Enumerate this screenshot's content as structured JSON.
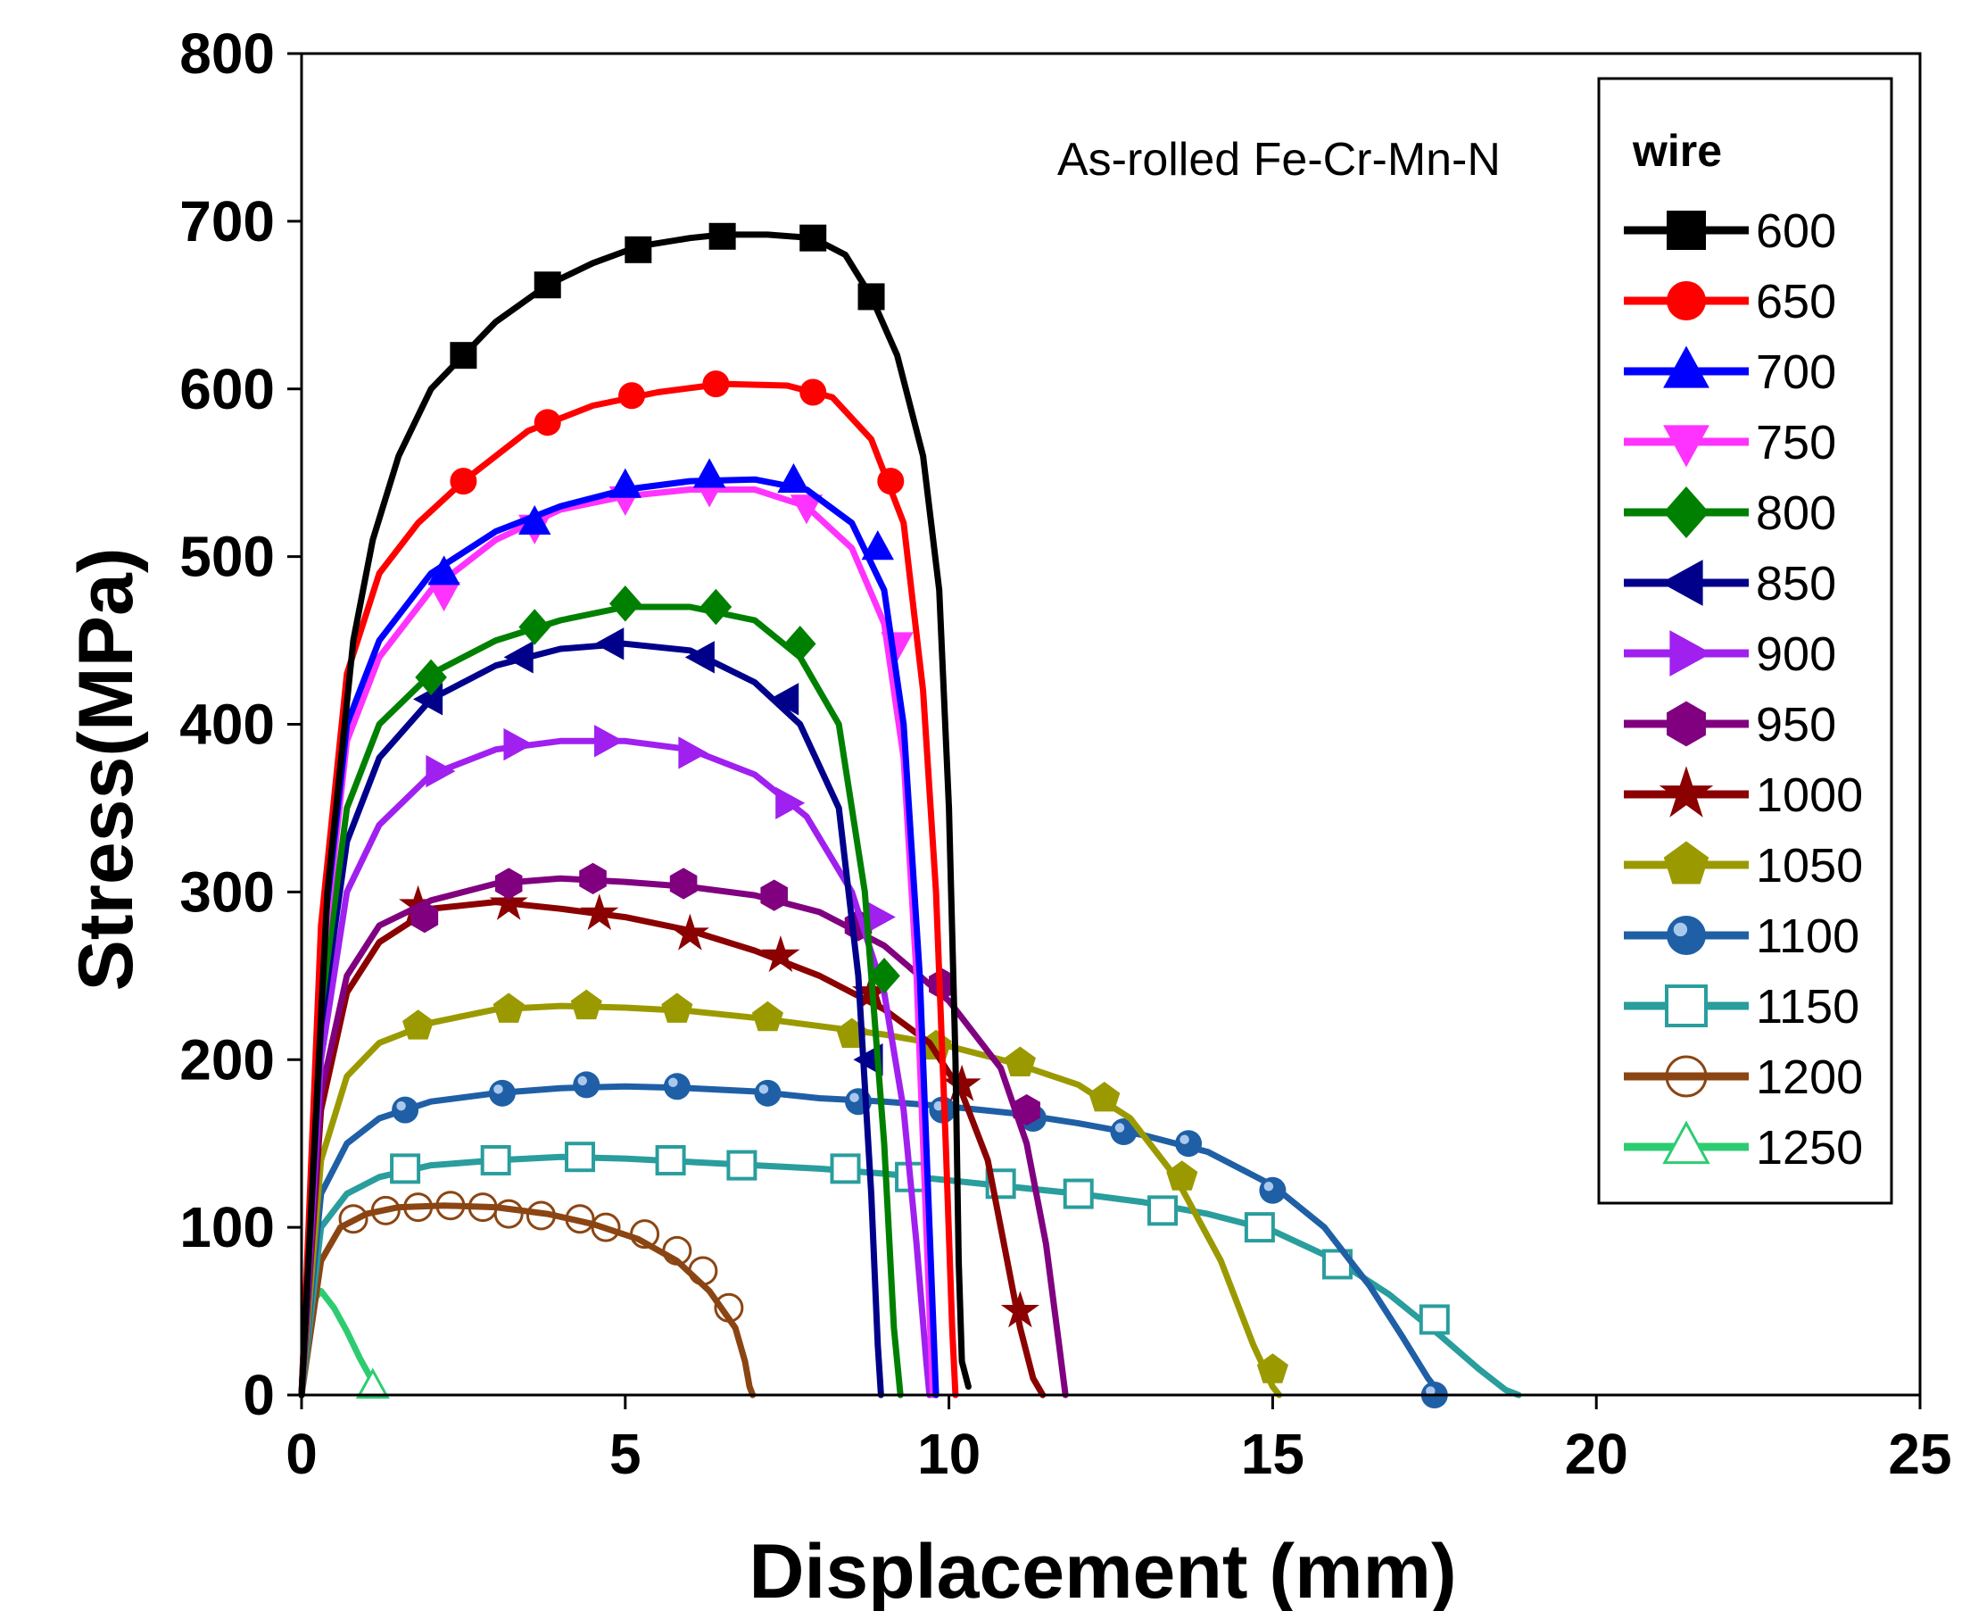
{
  "chart_data": {
    "type": "line",
    "title": "",
    "annotation": "As-rolled Fe-Cr-Mn-N",
    "xlabel": "Displacement (mm)",
    "ylabel": "Stress(MPa)",
    "xlim": [
      0,
      25
    ],
    "ylim": [
      0,
      800
    ],
    "xticks": [
      0,
      5,
      10,
      15,
      20,
      25
    ],
    "yticks": [
      0,
      100,
      200,
      300,
      400,
      500,
      600,
      700,
      800
    ],
    "grid": false,
    "legend": {
      "title": "wire",
      "position": "top-right"
    },
    "series": [
      {
        "name": "600",
        "color": "#000000",
        "marker": "square",
        "x": [
          0,
          0.4,
          0.8,
          1.1,
          1.5,
          2.0,
          2.5,
          3.0,
          3.8,
          4.5,
          5.2,
          6.0,
          6.5,
          7.2,
          7.9,
          8.4,
          8.8,
          9.2,
          9.6,
          9.85,
          10.0,
          10.1,
          10.15,
          10.2,
          10.3
        ],
        "y": [
          0,
          300,
          450,
          510,
          560,
          600,
          620,
          640,
          662,
          675,
          685,
          690,
          692,
          692,
          690,
          680,
          655,
          620,
          560,
          480,
          350,
          200,
          80,
          20,
          5
        ],
        "markers_x": [
          2.5,
          3.8,
          5.2,
          6.5,
          7.9,
          8.8
        ],
        "markers_y": [
          620,
          662,
          683,
          691,
          690,
          655
        ]
      },
      {
        "name": "650",
        "color": "#ff0000",
        "marker": "circle",
        "x": [
          0,
          0.3,
          0.7,
          1.2,
          1.8,
          2.5,
          3.5,
          4.5,
          5.5,
          6.5,
          7.5,
          8.2,
          8.8,
          9.3,
          9.6,
          9.8,
          9.95,
          10.05,
          10.1
        ],
        "y": [
          0,
          280,
          430,
          490,
          520,
          545,
          575,
          590,
          598,
          603,
          602,
          595,
          570,
          520,
          420,
          300,
          150,
          40,
          0
        ],
        "markers_x": [
          2.5,
          3.8,
          5.1,
          6.4,
          7.9,
          9.1
        ],
        "markers_y": [
          545,
          580,
          596,
          603,
          598,
          545
        ]
      },
      {
        "name": "700",
        "color": "#0000ff",
        "marker": "triangle-up",
        "x": [
          0,
          0.3,
          0.7,
          1.2,
          2.0,
          3.0,
          4.0,
          5.0,
          6.0,
          7.0,
          7.8,
          8.5,
          9.0,
          9.3,
          9.55,
          9.7,
          9.8
        ],
        "y": [
          0,
          260,
          400,
          450,
          490,
          515,
          530,
          540,
          545,
          546,
          540,
          520,
          480,
          400,
          250,
          100,
          0
        ],
        "markers_x": [
          2.2,
          3.6,
          5.0,
          6.3,
          7.6,
          8.9
        ],
        "markers_y": [
          490,
          520,
          542,
          548,
          545,
          505
        ]
      },
      {
        "name": "750",
        "color": "#ff33ff",
        "marker": "triangle-down",
        "x": [
          0,
          0.3,
          0.7,
          1.2,
          2.0,
          3.0,
          4.0,
          5.0,
          6.0,
          7.0,
          7.8,
          8.5,
          9.0,
          9.3,
          9.5,
          9.65,
          9.75
        ],
        "y": [
          0,
          250,
          390,
          440,
          480,
          510,
          528,
          536,
          540,
          540,
          530,
          505,
          460,
          380,
          250,
          100,
          0
        ],
        "markers_x": [
          2.2,
          3.6,
          5.0,
          6.3,
          7.8,
          9.2
        ],
        "markers_y": [
          478,
          518,
          535,
          540,
          530,
          448
        ]
      },
      {
        "name": "800",
        "color": "#008000",
        "marker": "diamond",
        "x": [
          0,
          0.3,
          0.7,
          1.2,
          2.0,
          3.0,
          4.0,
          5.0,
          6.0,
          7.0,
          7.7,
          8.3,
          8.7,
          9.0,
          9.15,
          9.25
        ],
        "y": [
          0,
          230,
          350,
          400,
          430,
          450,
          462,
          470,
          470,
          462,
          440,
          400,
          300,
          150,
          40,
          0
        ],
        "markers_x": [
          2.0,
          3.6,
          5.0,
          6.4,
          7.7,
          9.0
        ],
        "markers_y": [
          428,
          458,
          472,
          470,
          448,
          250
        ]
      },
      {
        "name": "850",
        "color": "#00008b",
        "marker": "triangle-left",
        "x": [
          0,
          0.3,
          0.7,
          1.2,
          2.0,
          3.0,
          4.0,
          5.0,
          6.0,
          7.0,
          7.7,
          8.3,
          8.6,
          8.8,
          8.9,
          8.95
        ],
        "y": [
          0,
          220,
          330,
          380,
          415,
          435,
          445,
          448,
          444,
          425,
          400,
          350,
          250,
          120,
          30,
          0
        ],
        "markers_x": [
          2.0,
          3.4,
          4.8,
          6.2,
          7.5,
          8.8
        ],
        "markers_y": [
          415,
          440,
          448,
          440,
          415,
          200
        ]
      },
      {
        "name": "900",
        "color": "#a020f0",
        "marker": "triangle-right",
        "x": [
          0,
          0.3,
          0.7,
          1.2,
          2.0,
          3.0,
          4.0,
          5.0,
          6.0,
          7.0,
          7.8,
          8.5,
          9.0,
          9.3,
          9.5,
          9.65,
          9.7
        ],
        "y": [
          0,
          200,
          300,
          340,
          370,
          385,
          390,
          390,
          385,
          370,
          345,
          300,
          240,
          170,
          90,
          20,
          0
        ],
        "markers_x": [
          2.1,
          3.3,
          4.7,
          6.0,
          7.5,
          8.9
        ],
        "markers_y": [
          372,
          388,
          390,
          383,
          353,
          285
        ]
      },
      {
        "name": "950",
        "color": "#800080",
        "marker": "hexagon",
        "x": [
          0,
          0.3,
          0.7,
          1.2,
          2.0,
          3.0,
          4.0,
          5.0,
          6.0,
          7.0,
          8.0,
          9.0,
          10.0,
          10.8,
          11.2,
          11.5,
          11.7,
          11.8
        ],
        "y": [
          0,
          180,
          250,
          280,
          295,
          305,
          308,
          306,
          303,
          298,
          288,
          268,
          235,
          195,
          150,
          90,
          30,
          0
        ],
        "markers_x": [
          1.9,
          3.2,
          4.5,
          5.9,
          7.3,
          8.6,
          9.9,
          11.2
        ],
        "markers_y": [
          285,
          305,
          308,
          305,
          298,
          280,
          245,
          170
        ]
      },
      {
        "name": "1000",
        "color": "#8b0000",
        "marker": "star",
        "x": [
          0,
          0.3,
          0.7,
          1.2,
          2.0,
          3.0,
          4.0,
          5.0,
          6.0,
          7.0,
          8.0,
          9.0,
          9.7,
          10.2,
          10.6,
          10.9,
          11.1,
          11.3,
          11.45
        ],
        "y": [
          0,
          170,
          240,
          270,
          290,
          294,
          290,
          285,
          277,
          265,
          250,
          230,
          210,
          180,
          140,
          80,
          40,
          10,
          0
        ],
        "markers_x": [
          1.8,
          3.2,
          4.6,
          6.0,
          7.4,
          8.8,
          10.2,
          11.1
        ],
        "markers_y": [
          292,
          293,
          287,
          275,
          262,
          240,
          185,
          50
        ]
      },
      {
        "name": "1050",
        "color": "#9a9a00",
        "marker": "pentagon",
        "x": [
          0,
          0.3,
          0.7,
          1.2,
          2.0,
          3.0,
          4.0,
          5.0,
          6.0,
          7.0,
          8.0,
          9.0,
          10.0,
          11.0,
          12.0,
          12.8,
          13.5,
          14.2,
          14.7,
          15.0,
          15.1
        ],
        "y": [
          0,
          140,
          190,
          210,
          222,
          230,
          232,
          231,
          229,
          225,
          220,
          215,
          208,
          198,
          185,
          165,
          130,
          80,
          30,
          5,
          0
        ],
        "markers_x": [
          1.8,
          3.2,
          4.4,
          5.8,
          7.2,
          8.5,
          9.8,
          11.1,
          12.4,
          13.6,
          15.0
        ],
        "markers_y": [
          220,
          230,
          232,
          230,
          225,
          215,
          208,
          198,
          177,
          130,
          15
        ]
      },
      {
        "name": "1100",
        "color": "#1f5fa6",
        "marker": "circle-shaded",
        "x": [
          0,
          0.3,
          0.7,
          1.2,
          2.0,
          3.0,
          4.0,
          5.0,
          6.0,
          7.0,
          8.0,
          9.0,
          10.0,
          11.0,
          12.0,
          13.0,
          14.0,
          15.0,
          15.8,
          16.5,
          17.0,
          17.4,
          17.6
        ],
        "y": [
          0,
          120,
          150,
          165,
          175,
          180,
          183,
          184,
          183,
          181,
          177,
          175,
          172,
          168,
          162,
          155,
          145,
          125,
          100,
          65,
          35,
          10,
          0
        ],
        "markers_x": [
          1.6,
          3.1,
          4.4,
          5.8,
          7.2,
          8.6,
          9.9,
          11.3,
          12.7,
          13.7,
          15.0,
          17.5
        ],
        "markers_y": [
          170,
          180,
          185,
          184,
          180,
          175,
          170,
          165,
          157,
          150,
          122,
          0
        ]
      },
      {
        "name": "1150",
        "color": "#2a9d9d",
        "marker": "square-open",
        "x": [
          0,
          0.3,
          0.7,
          1.2,
          2.0,
          3.0,
          4.0,
          5.0,
          6.0,
          7.0,
          8.0,
          9.0,
          10.0,
          11.0,
          12.0,
          13.0,
          14.0,
          15.0,
          16.0,
          16.8,
          17.6,
          18.2,
          18.6,
          18.8
        ],
        "y": [
          0,
          100,
          120,
          130,
          137,
          140,
          142,
          141,
          139,
          137,
          135,
          132,
          128,
          124,
          120,
          115,
          108,
          98,
          80,
          60,
          35,
          15,
          3,
          0
        ],
        "markers_x": [
          1.6,
          3.0,
          4.3,
          5.7,
          6.8,
          8.4,
          9.4,
          10.8,
          12.0,
          13.3,
          14.8,
          16.0,
          17.5
        ],
        "markers_y": [
          135,
          140,
          142,
          140,
          137,
          135,
          130,
          126,
          120,
          110,
          100,
          78,
          45
        ]
      },
      {
        "name": "1200",
        "color": "#8b4513",
        "marker": "circle-open",
        "x": [
          0,
          0.3,
          0.6,
          1.0,
          1.5,
          2.2,
          3.0,
          3.8,
          4.5,
          5.2,
          5.8,
          6.3,
          6.7,
          6.85,
          6.92,
          6.97
        ],
        "y": [
          0,
          80,
          100,
          108,
          112,
          113,
          112,
          108,
          102,
          93,
          80,
          62,
          40,
          20,
          5,
          0
        ],
        "markers_x": [
          0.8,
          1.3,
          1.8,
          2.3,
          2.8,
          3.2,
          3.7,
          4.3,
          4.7,
          5.3,
          5.8,
          6.2,
          6.6
        ],
        "markers_y": [
          105,
          110,
          112,
          113,
          112,
          108,
          107,
          105,
          100,
          96,
          86,
          74,
          52
        ]
      },
      {
        "name": "1250",
        "color": "#2ecc71",
        "marker": "triangle-open",
        "x": [
          0,
          0.15,
          0.3,
          0.5,
          0.7,
          0.9,
          1.1,
          1.25
        ],
        "y": [
          0,
          55,
          62,
          52,
          38,
          22,
          8,
          0
        ],
        "markers_x": [
          1.1
        ],
        "markers_y": [
          5
        ]
      }
    ]
  }
}
